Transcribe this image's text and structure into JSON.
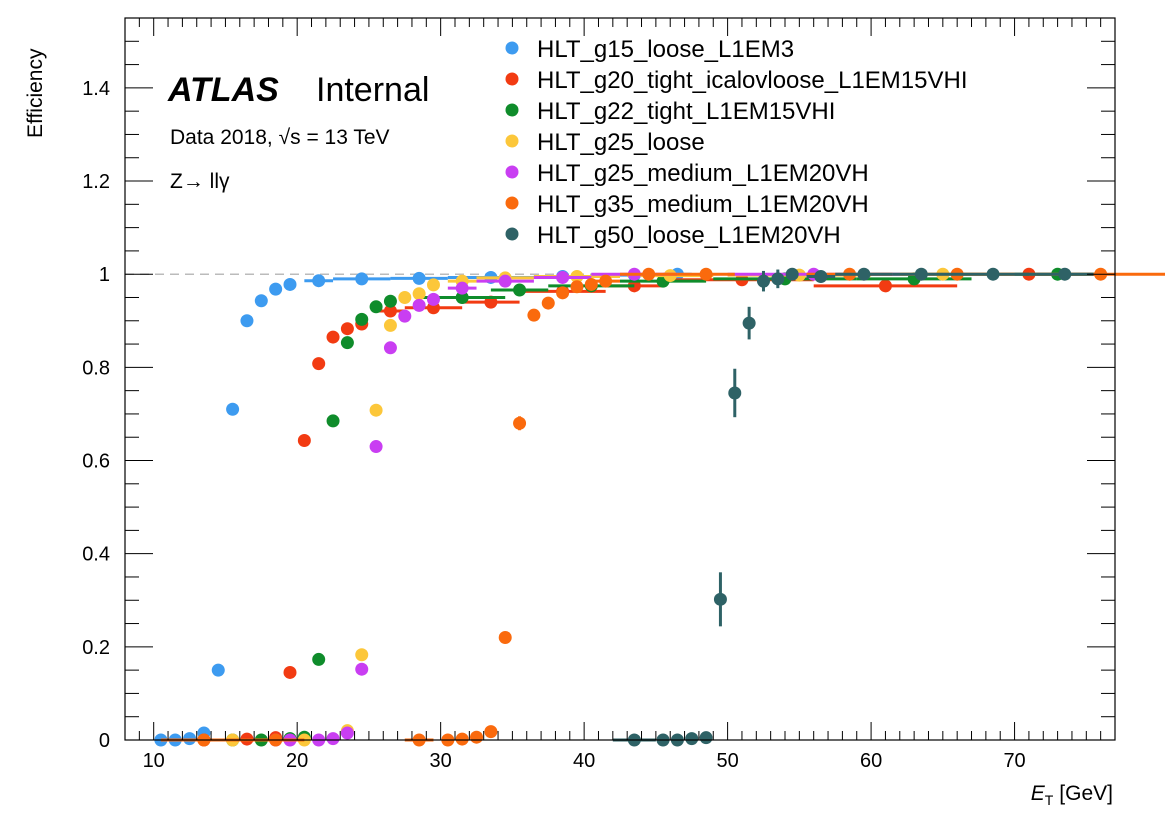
{
  "header": {
    "experiment": "ATLAS",
    "status": "Internal",
    "dataset": "Data 2018, √s = 13 TeV",
    "channel": "Z→ llγ"
  },
  "chart_data": {
    "type": "scatter",
    "xlabel": "E_T [GeV]",
    "xlabel_main": "E",
    "xlabel_sub": "T",
    "xlabel_unit": "[GeV]",
    "ylabel": "Efficiency",
    "xlim": [
      8,
      77
    ],
    "ylim": [
      0,
      1.55
    ],
    "x_ticks": [
      10,
      20,
      30,
      40,
      50,
      60,
      70
    ],
    "y_ticks": [
      0,
      0.2,
      0.4,
      0.6,
      0.8,
      1,
      1.2,
      1.4
    ],
    "y_tick_labels": [
      "0",
      "0.2",
      "0.4",
      "0.6",
      "0.8",
      "1",
      "1.2",
      "1.4"
    ],
    "reference_line": 1.0,
    "legend_position": "top-right",
    "series": [
      {
        "name": "HLT_g15_loose_L1EM3",
        "color": "#3d9bf0",
        "points": [
          {
            "x": 10.5,
            "y": 0.0
          },
          {
            "x": 11.5,
            "y": 0.0
          },
          {
            "x": 12.5,
            "y": 0.003
          },
          {
            "x": 13.5,
            "y": 0.015
          },
          {
            "x": 14.5,
            "y": 0.15
          },
          {
            "x": 15.5,
            "y": 0.71
          },
          {
            "x": 16.5,
            "y": 0.9
          },
          {
            "x": 17.5,
            "y": 0.943
          },
          {
            "x": 18.5,
            "y": 0.968
          },
          {
            "x": 19.5,
            "y": 0.978
          },
          {
            "x": 21.5,
            "y": 0.986,
            "xerr": 1
          },
          {
            "x": 24.5,
            "y": 0.99,
            "xerr": 2
          },
          {
            "x": 28.5,
            "y": 0.991,
            "xerr": 2
          },
          {
            "x": 33.5,
            "y": 0.993,
            "xerr": 3
          },
          {
            "x": 38.5,
            "y": 0.995,
            "xerr": 2
          },
          {
            "x": 43.5,
            "y": 0.998,
            "xerr": 3
          },
          {
            "x": 46.5,
            "y": 1.0,
            "xerr": 1
          }
        ]
      },
      {
        "name": "HLT_g20_tight_icalovloose_L1EM15VHI",
        "color": "#f23b12",
        "points": [
          {
            "x": 13.5,
            "y": 0.0
          },
          {
            "x": 16.5,
            "y": 0.002
          },
          {
            "x": 18.5,
            "y": 0.005
          },
          {
            "x": 19.5,
            "y": 0.145
          },
          {
            "x": 20.5,
            "y": 0.643
          },
          {
            "x": 21.5,
            "y": 0.808
          },
          {
            "x": 22.5,
            "y": 0.865
          },
          {
            "x": 23.5,
            "y": 0.883
          },
          {
            "x": 24.5,
            "y": 0.893
          },
          {
            "x": 26.5,
            "y": 0.921,
            "xerr": 1
          },
          {
            "x": 29.5,
            "y": 0.928,
            "xerr": 2
          },
          {
            "x": 33.5,
            "y": 0.94,
            "xerr": 2
          },
          {
            "x": 38.5,
            "y": 0.963,
            "xerr": 3
          },
          {
            "x": 43.5,
            "y": 0.975,
            "xerr": 2
          },
          {
            "x": 51.0,
            "y": 0.988,
            "xerr": 5
          },
          {
            "x": 61.0,
            "y": 0.975,
            "xerr": 5
          },
          {
            "x": 71.0,
            "y": 1.0,
            "xerr": 5
          }
        ]
      },
      {
        "name": "HLT_g22_tight_L1EM15VHI",
        "color": "#0f8c2b",
        "points": [
          {
            "x": 15.5,
            "y": 0.0
          },
          {
            "x": 17.5,
            "y": 0.0
          },
          {
            "x": 19.5,
            "y": 0.003
          },
          {
            "x": 20.5,
            "y": 0.006
          },
          {
            "x": 21.5,
            "y": 0.173
          },
          {
            "x": 22.5,
            "y": 0.685
          },
          {
            "x": 23.5,
            "y": 0.853
          },
          {
            "x": 24.5,
            "y": 0.903
          },
          {
            "x": 25.5,
            "y": 0.93
          },
          {
            "x": 26.5,
            "y": 0.942
          },
          {
            "x": 31.5,
            "y": 0.95,
            "xerr": 3
          },
          {
            "x": 35.5,
            "y": 0.966,
            "xerr": 2
          },
          {
            "x": 40.5,
            "y": 0.975,
            "xerr": 3
          },
          {
            "x": 45.5,
            "y": 0.985,
            "xerr": 3
          },
          {
            "x": 54.0,
            "y": 0.99,
            "xerr": 5
          },
          {
            "x": 63.0,
            "y": 0.99,
            "xerr": 4
          },
          {
            "x": 73.0,
            "y": 1.0,
            "xerr": 3
          }
        ]
      },
      {
        "name": "HLT_g25_loose",
        "color": "#fcc73a",
        "points": [
          {
            "x": 15.5,
            "y": 0.0
          },
          {
            "x": 20.5,
            "y": 0.0
          },
          {
            "x": 23.5,
            "y": 0.02
          },
          {
            "x": 24.5,
            "y": 0.183
          },
          {
            "x": 25.5,
            "y": 0.708
          },
          {
            "x": 26.5,
            "y": 0.89
          },
          {
            "x": 27.5,
            "y": 0.95
          },
          {
            "x": 28.5,
            "y": 0.958
          },
          {
            "x": 29.5,
            "y": 0.977
          },
          {
            "x": 31.5,
            "y": 0.985,
            "xerr": 1
          },
          {
            "x": 34.5,
            "y": 0.992,
            "xerr": 2
          },
          {
            "x": 39.5,
            "y": 0.995,
            "xerr": 3
          },
          {
            "x": 46.0,
            "y": 0.997,
            "xerr": 3
          },
          {
            "x": 55.0,
            "y": 0.998,
            "xerr": 5
          },
          {
            "x": 65.0,
            "y": 1.0,
            "xerr": 5
          }
        ]
      },
      {
        "name": "HLT_g25_medium_L1EM20VH",
        "color": "#c93ef2",
        "points": [
          {
            "x": 18.5,
            "y": 0.0
          },
          {
            "x": 19.5,
            "y": 0.0
          },
          {
            "x": 21.5,
            "y": 0.0
          },
          {
            "x": 22.5,
            "y": 0.003
          },
          {
            "x": 23.5,
            "y": 0.015
          },
          {
            "x": 24.5,
            "y": 0.152
          },
          {
            "x": 25.5,
            "y": 0.63
          },
          {
            "x": 26.5,
            "y": 0.842
          },
          {
            "x": 27.5,
            "y": 0.91
          },
          {
            "x": 28.5,
            "y": 0.933
          },
          {
            "x": 29.5,
            "y": 0.946
          },
          {
            "x": 31.5,
            "y": 0.97,
            "xerr": 1
          },
          {
            "x": 34.5,
            "y": 0.985,
            "xerr": 2
          },
          {
            "x": 38.5,
            "y": 0.993,
            "xerr": 2
          },
          {
            "x": 43.5,
            "y": 1.0,
            "xerr": 3
          },
          {
            "x": 56.0,
            "y": 1.0,
            "xerr": 6
          }
        ]
      },
      {
        "name": "HLT_g35_medium_L1EM20VH",
        "color": "#fa6a0d",
        "points": [
          {
            "x": 13.5,
            "y": 0.0,
            "xerr": 3
          },
          {
            "x": 18.5,
            "y": 0.0,
            "xerr": 2
          },
          {
            "x": 28.5,
            "y": 0.0,
            "xerr": 1
          },
          {
            "x": 30.5,
            "y": 0.0
          },
          {
            "x": 31.5,
            "y": 0.002
          },
          {
            "x": 32.5,
            "y": 0.006
          },
          {
            "x": 33.5,
            "y": 0.018
          },
          {
            "x": 34.5,
            "y": 0.22
          },
          {
            "x": 35.5,
            "y": 0.68,
            "yerr": 0.015
          },
          {
            "x": 36.5,
            "y": 0.912
          },
          {
            "x": 37.5,
            "y": 0.938
          },
          {
            "x": 38.5,
            "y": 0.96
          },
          {
            "x": 39.5,
            "y": 0.973
          },
          {
            "x": 40.5,
            "y": 0.978
          },
          {
            "x": 41.5,
            "y": 0.985,
            "xerr": 1
          },
          {
            "x": 44.5,
            "y": 1.0,
            "xerr": 2
          },
          {
            "x": 48.5,
            "y": 1.0,
            "xerr": 2
          },
          {
            "x": 58.5,
            "y": 1.0,
            "xerr": 3
          },
          {
            "x": 66.0,
            "y": 1.0,
            "xerr": 4
          },
          {
            "x": 76.0,
            "y": 1.0,
            "xerr": 5
          }
        ]
      },
      {
        "name": "HLT_g50_loose_L1EM20VH",
        "color": "#2e6266",
        "points": [
          {
            "x": 43.5,
            "y": 0.0,
            "xerr": 1.5
          },
          {
            "x": 45.5,
            "y": 0.0
          },
          {
            "x": 46.5,
            "y": 0.0
          },
          {
            "x": 47.5,
            "y": 0.003
          },
          {
            "x": 48.5,
            "y": 0.005
          },
          {
            "x": 49.5,
            "y": 0.302,
            "yerr": 0.058
          },
          {
            "x": 50.5,
            "y": 0.745,
            "yerr": 0.052
          },
          {
            "x": 51.5,
            "y": 0.895,
            "yerr": 0.035
          },
          {
            "x": 52.5,
            "y": 0.985,
            "yerr": 0.022
          },
          {
            "x": 53.5,
            "y": 0.99,
            "yerr": 0.02
          },
          {
            "x": 54.5,
            "y": 1.0
          },
          {
            "x": 56.5,
            "y": 0.995,
            "xerr": 1
          },
          {
            "x": 59.5,
            "y": 1.0,
            "xerr": 2
          },
          {
            "x": 63.5,
            "y": 1.0,
            "xerr": 2
          },
          {
            "x": 68.5,
            "y": 1.0,
            "xerr": 3
          },
          {
            "x": 73.5,
            "y": 1.0,
            "xerr": 2
          }
        ]
      }
    ]
  }
}
